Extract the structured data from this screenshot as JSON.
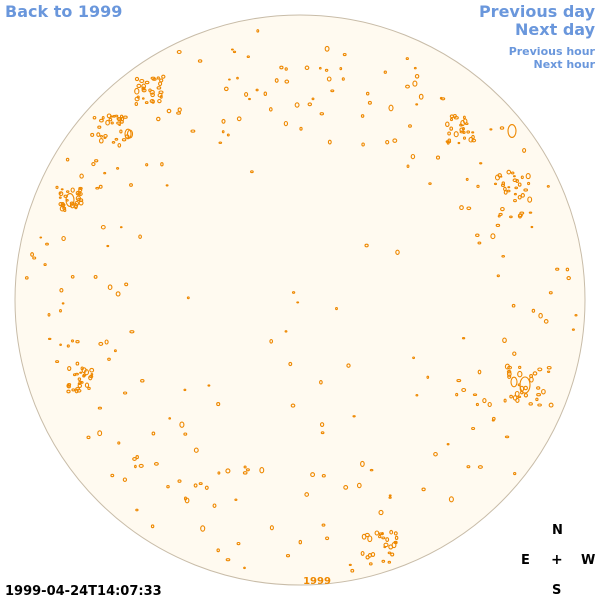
{
  "nav": {
    "back": "Back to 1999",
    "prev_day": "Previous day",
    "next_day": "Next day",
    "prev_hour": "Previous hour",
    "next_hour": "Next hour"
  },
  "disk": {
    "year_label": "1999",
    "fill_color": "#fffaf0",
    "edge_color": "#c8bca8",
    "feature_color": "#ee8800"
  },
  "compass": {
    "north": "N",
    "east": "E",
    "center": "+",
    "west": "W",
    "south": "S"
  },
  "timestamp": "1999-04-24T14:07:33",
  "colors": {
    "link": "#6a97dc",
    "text": "#000000"
  }
}
